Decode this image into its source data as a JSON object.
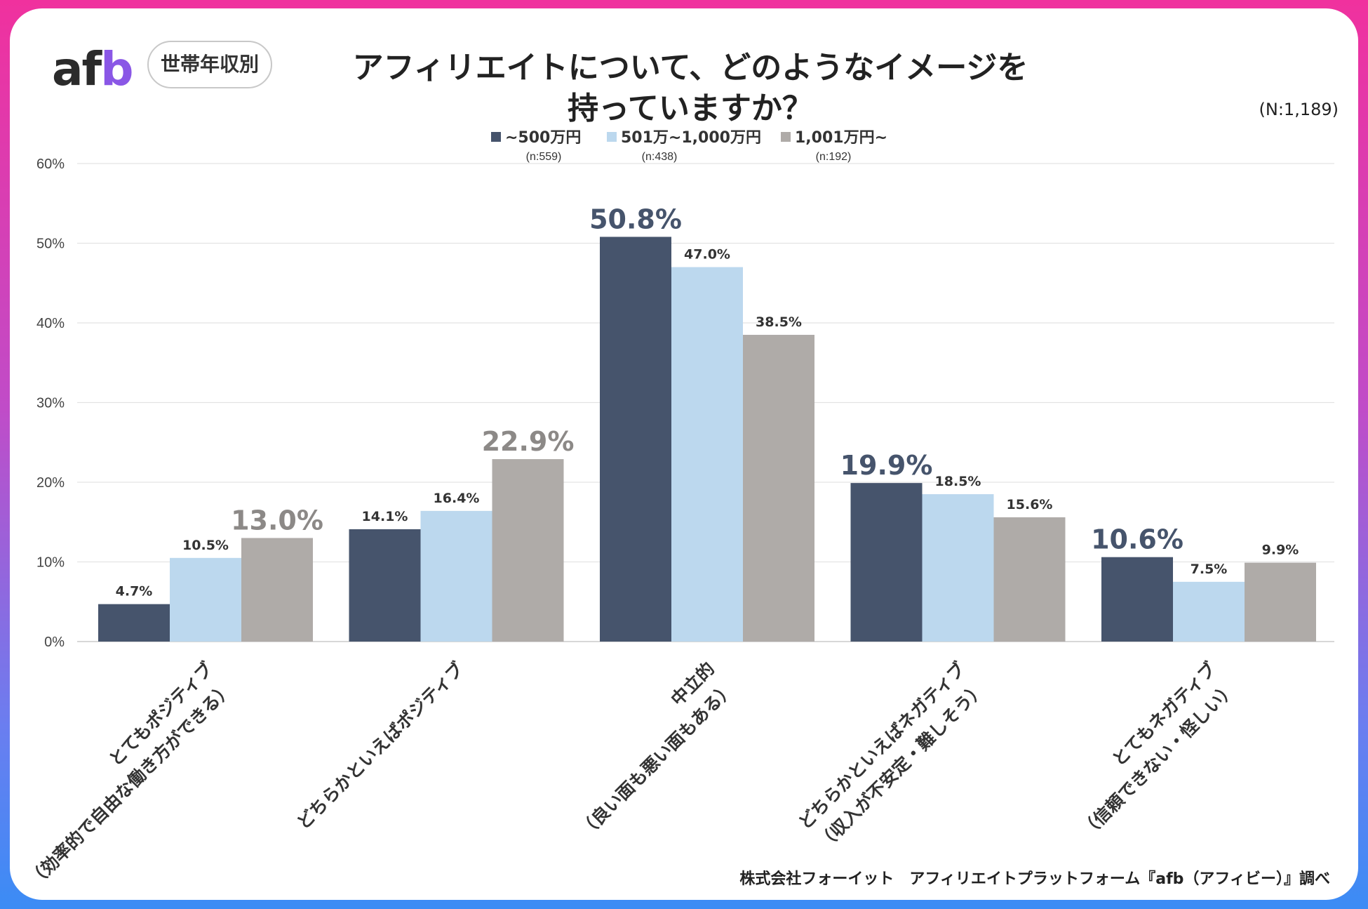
{
  "brand": {
    "logo_prefix": "af",
    "logo_suffix": "b"
  },
  "badge": "世帯年収別",
  "header": {
    "title_line1": "アフィリエイトについて、どのようなイメージを",
    "title_line2": "持っていますか？",
    "sample_size": "(N:1,189)"
  },
  "source": "株式会社フォーイット　アフィリエイトプラットフォーム『afb（アフィビー）』調べ",
  "colors": {
    "series1": "#46546c",
    "series2": "#bcd8ee",
    "series3": "#afaba8",
    "frame_top": "#f0319e",
    "frame_bottom": "#3b8cf5"
  },
  "chart_data": {
    "type": "bar",
    "title": "アフィリエイトについて、どのようなイメージを持っていますか？",
    "xlabel": "",
    "ylabel": "",
    "ylim": [
      0,
      60
    ],
    "yticks": [
      "0%",
      "10%",
      "20%",
      "30%",
      "40%",
      "50%",
      "60%"
    ],
    "grid": true,
    "legend_position": "top-center",
    "categories": [
      [
        "とてもポジティブ",
        "（効率的で自由な働き方ができる）"
      ],
      [
        "どちらかといえばポジティブ"
      ],
      [
        "中立的",
        "（良い面も悪い面もある）"
      ],
      [
        "どちらかといえばネガティブ",
        "（収入が不安定・難しそう）"
      ],
      [
        "とてもネガティブ",
        "（信頼できない・怪しい）"
      ]
    ],
    "series": [
      {
        "name": "~500万円",
        "n": "(n:559)",
        "values": [
          4.7,
          14.1,
          50.8,
          19.9,
          10.6
        ]
      },
      {
        "name": "501万~1,000万円",
        "n": "(n:438)",
        "values": [
          10.5,
          16.4,
          47.0,
          18.5,
          7.5
        ]
      },
      {
        "name": "1,001万円~",
        "n": "(n:192)",
        "values": [
          13.0,
          22.9,
          38.5,
          15.6,
          9.9
        ]
      }
    ],
    "data_labels": [
      [
        "4.7%",
        "14.1%",
        "50.8%",
        "19.9%",
        "10.6%"
      ],
      [
        "10.5%",
        "16.4%",
        "47.0%",
        "18.5%",
        "7.5%"
      ],
      [
        "13.0%",
        "22.9%",
        "38.5%",
        "15.6%",
        "9.9%"
      ]
    ]
  }
}
